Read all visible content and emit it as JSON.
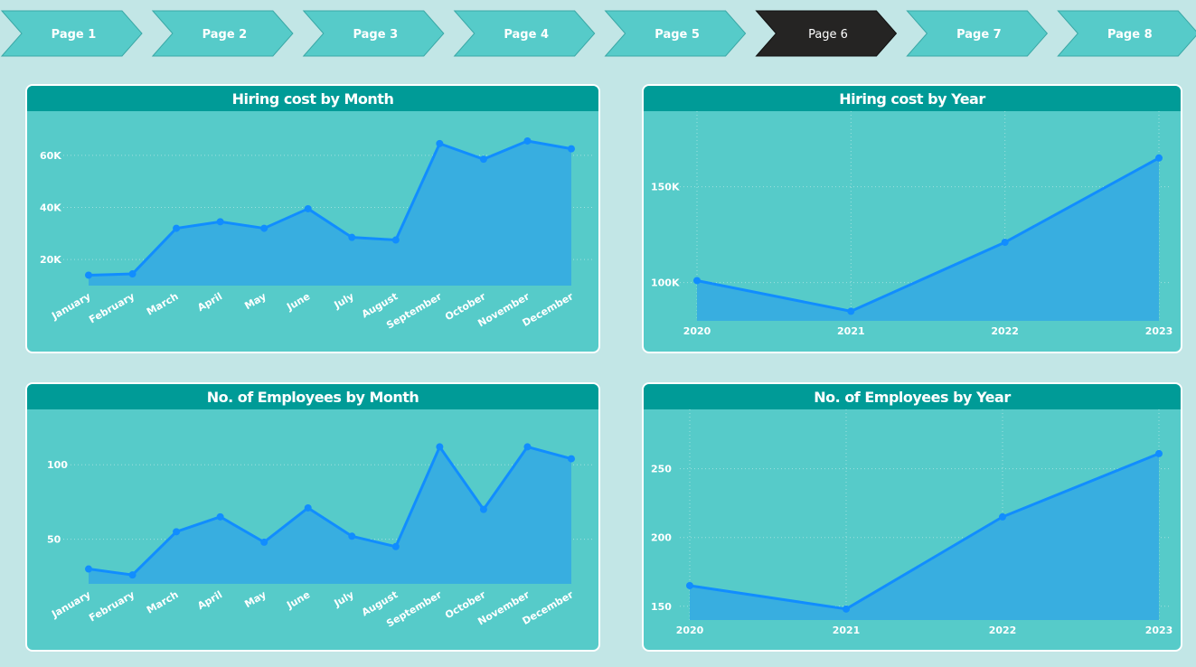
{
  "nav": {
    "pages": [
      "Page 1",
      "Page 2",
      "Page 3",
      "Page 4",
      "Page 5",
      "Page 6",
      "Page 7",
      "Page 8"
    ],
    "active_index": 5,
    "colors": {
      "inactive": "#56cbc9",
      "active": "#252423",
      "text_inactive": "#ffffff",
      "text_active": "#ffffff"
    }
  },
  "colors": {
    "line": "#118dff",
    "area": "#38aee0",
    "card": "#56cbc9",
    "card_header": "#009b97"
  },
  "chart_data": [
    {
      "id": "hiring-cost-by-month",
      "type": "area",
      "title": "Hiring cost by Month",
      "categories": [
        "January",
        "February",
        "March",
        "April",
        "May",
        "June",
        "July",
        "August",
        "September",
        "October",
        "November",
        "December"
      ],
      "values": [
        14000,
        14500,
        32000,
        34500,
        32000,
        39500,
        28500,
        27500,
        64500,
        58500,
        65500,
        62500
      ],
      "yticks": [
        20000,
        40000,
        60000
      ],
      "ytick_labels": [
        "20K",
        "40K",
        "60K"
      ],
      "ylim": [
        10000,
        70000
      ],
      "grid": true,
      "xlabel_rotation": -30
    },
    {
      "id": "hiring-cost-by-year",
      "type": "area",
      "title": "Hiring cost by Year",
      "categories": [
        "2020",
        "2021",
        "2022",
        "2023"
      ],
      "values": [
        101000,
        85000,
        121000,
        165000
      ],
      "yticks": [
        100000,
        150000
      ],
      "ytick_labels": [
        "100K",
        "150K"
      ],
      "ylim": [
        80000,
        180000
      ],
      "grid": true,
      "xlabel_rotation": 0
    },
    {
      "id": "employees-by-month",
      "type": "area",
      "title": "No. of Employees by Month",
      "categories": [
        "January",
        "February",
        "March",
        "April",
        "May",
        "June",
        "July",
        "August",
        "September",
        "October",
        "November",
        "December"
      ],
      "values": [
        30,
        26,
        55,
        65,
        48,
        71,
        52,
        45,
        112,
        70,
        112,
        104
      ],
      "yticks": [
        50,
        100
      ],
      "ytick_labels": [
        "50",
        "100"
      ],
      "ylim": [
        20,
        125
      ],
      "grid": true,
      "xlabel_rotation": -30
    },
    {
      "id": "employees-by-year",
      "type": "area",
      "title": "No. of Employees by Year",
      "categories": [
        "2020",
        "2021",
        "2022",
        "2023"
      ],
      "values": [
        165,
        148,
        215,
        261
      ],
      "yticks": [
        150,
        200,
        250
      ],
      "ytick_labels": [
        "150",
        "200",
        "250"
      ],
      "ylim": [
        140,
        280
      ],
      "grid": true,
      "xlabel_rotation": 0
    }
  ]
}
